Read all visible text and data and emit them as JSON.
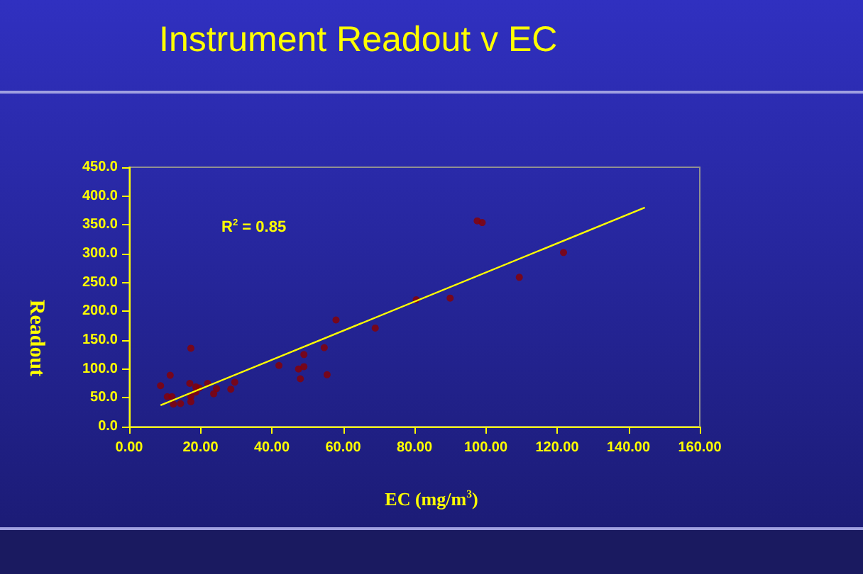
{
  "chart_data": {
    "type": "scatter",
    "title": "Instrument Readout v EC",
    "xlabel": "EC (mg/m$^{3}$)",
    "ylabel": "Readout",
    "annotations": [
      "R$^{2}$ = 0.85"
    ],
    "series": [
      {
        "color": "#8b0000",
        "marker": "circle",
        "x": [
          8.8,
          11.5,
          10.7,
          12,
          12.4,
          14.4,
          17.3,
          17,
          17.3,
          17.3,
          18.7,
          19.7,
          18.7,
          22,
          23.7,
          24.5,
          28.5,
          29.6,
          42,
          47.5,
          48,
          49,
          49,
          54.7,
          55.5,
          58,
          69,
          80.5,
          90,
          97.6,
          99,
          109.4,
          121.8
        ],
        "values": [
          71,
          89,
          52,
          52,
          39,
          40,
          136,
          75,
          52,
          43,
          69,
          67,
          60,
          75,
          57,
          66,
          65,
          77,
          106,
          100,
          83,
          125,
          104,
          137,
          90,
          185,
          171,
          220,
          223,
          357,
          354,
          259,
          302
        ]
      },
      {
        "type": "line",
        "color": "#ffff00",
        "marker": "none",
        "line_style": "solid",
        "x": [
          8.8,
          144.6
        ],
        "values": [
          37,
          380
        ]
      }
    ],
    "xlim": [
      0,
      160
    ],
    "xticks": [
      {
        "value": 0,
        "label": "0.00"
      },
      {
        "value": 20,
        "label": "20.00"
      },
      {
        "value": 40,
        "label": "40.00"
      },
      {
        "value": 60,
        "label": "60.00"
      },
      {
        "value": 80,
        "label": "80.00"
      },
      {
        "value": 100,
        "label": "100.00"
      },
      {
        "value": 120,
        "label": "120.00"
      },
      {
        "value": 140,
        "label": "140.00"
      },
      {
        "value": 160,
        "label": "160.00"
      }
    ],
    "ylim": [
      0,
      450
    ],
    "yticks": [
      {
        "value": 0,
        "label": "0.0"
      },
      {
        "value": 50,
        "label": "50.0"
      },
      {
        "value": 100,
        "label": "100.0"
      },
      {
        "value": 150,
        "label": "150.0"
      },
      {
        "value": 200,
        "label": "200.0"
      },
      {
        "value": 250,
        "label": "250.0"
      },
      {
        "value": 300,
        "label": "300.0"
      },
      {
        "value": 350,
        "label": "350.0"
      },
      {
        "value": 400,
        "label": "400.0"
      },
      {
        "value": 450,
        "label": "450.0"
      }
    ],
    "grid": false
  }
}
